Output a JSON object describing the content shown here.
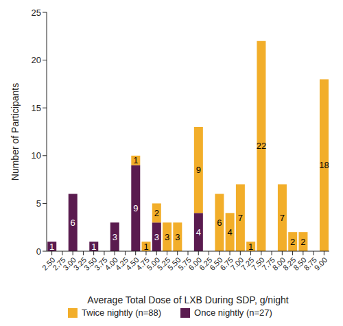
{
  "chart_data": {
    "type": "bar",
    "x_label": "Average Total Dose of LXB During SDP, g/night",
    "y_label": "Number of Participants",
    "categories": [
      "2.50",
      "2.75",
      "3.00",
      "3.25",
      "3.50",
      "3.75",
      "4.00",
      "4.25",
      "4.50",
      "4.75",
      "5.00",
      "5.25",
      "5.50",
      "5.75",
      "6.00",
      "6.25",
      "6.50",
      "6.75",
      "7.00",
      "7.25",
      "7.50",
      "7.75",
      "8.00",
      "8.25",
      "8.50",
      "8.75",
      "9.00"
    ],
    "series": [
      {
        "name": "Twice nightly (n=88)",
        "color": "#f2ae2a",
        "values": [
          null,
          null,
          null,
          null,
          null,
          null,
          null,
          null,
          1,
          1,
          2,
          3,
          3,
          null,
          9,
          null,
          6,
          4,
          7,
          1,
          22,
          null,
          7,
          2,
          2,
          null,
          18
        ]
      },
      {
        "name": "Once nightly (n=27)",
        "color": "#5a1b4f",
        "values": [
          1,
          null,
          6,
          null,
          1,
          null,
          3,
          null,
          9,
          null,
          3,
          null,
          null,
          null,
          4,
          null,
          null,
          null,
          null,
          null,
          null,
          null,
          null,
          null,
          null,
          null,
          null
        ]
      }
    ],
    "ylim": [
      0,
      25
    ],
    "yticks": [
      0,
      5,
      10,
      15,
      20,
      25
    ],
    "stacked": true,
    "data_labels": true,
    "legend": "bottom",
    "grid": false
  }
}
